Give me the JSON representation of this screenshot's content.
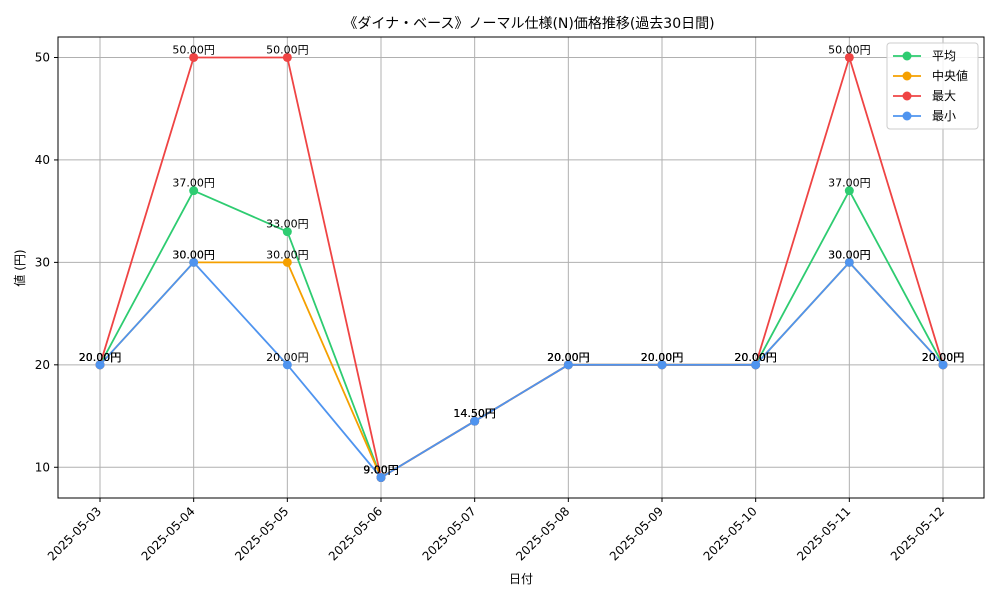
{
  "chart_data": {
    "type": "line",
    "title": "《ダイナ・ベース》ノーマル仕様(N)価格推移(過去30日間)",
    "xlabel": "日付",
    "ylabel": "値 (円)",
    "categories": [
      "2025-05-03",
      "2025-05-04",
      "2025-05-05",
      "2025-05-06",
      "2025-05-07",
      "2025-05-08",
      "2025-05-09",
      "2025-05-10",
      "2025-05-11",
      "2025-05-12"
    ],
    "ylim": [
      7,
      52
    ],
    "yticks": [
      10,
      20,
      30,
      40,
      50
    ],
    "grid": true,
    "legend_position": "top-right",
    "series": [
      {
        "name": "平均",
        "color": "#2ecc71",
        "values": [
          20,
          37,
          33,
          9,
          14.5,
          20,
          20,
          20,
          37,
          20
        ],
        "labels": [
          "20.00円",
          "37.00円",
          "33.00円",
          "9.00円",
          "14.50円",
          "20.00円",
          "20.00円",
          "20.00円",
          "37.00円",
          "20.00円"
        ]
      },
      {
        "name": "中央値",
        "color": "#f5a000",
        "values": [
          20,
          30,
          30,
          9,
          14.5,
          20,
          20,
          20,
          30,
          20
        ],
        "labels": [
          "20.00円",
          "30.00円",
          "30.00円",
          "9.00円",
          "14.50円",
          "20.00円",
          "20.00円",
          "20.00円",
          "30.00円",
          "20.00円"
        ]
      },
      {
        "name": "最大",
        "color": "#ef4444",
        "values": [
          20,
          50,
          50,
          9,
          14.5,
          20,
          20,
          20,
          50,
          20
        ],
        "labels": [
          "20.00円",
          "50.00円",
          "50.00円",
          "9.00円",
          "14.50円",
          "20.00円",
          "20.00円",
          "20.00円",
          "50.00円",
          "20.00円"
        ]
      },
      {
        "name": "最小",
        "color": "#4f94ef",
        "values": [
          20,
          30,
          20,
          9,
          14.5,
          20,
          20,
          20,
          30,
          20
        ],
        "labels": [
          "20.00円",
          "30.00円",
          "20.00円",
          "9.00円",
          "14.50円",
          "20.00円",
          "20.00円",
          "20.00円",
          "30.00円",
          "20.00円"
        ]
      }
    ]
  }
}
